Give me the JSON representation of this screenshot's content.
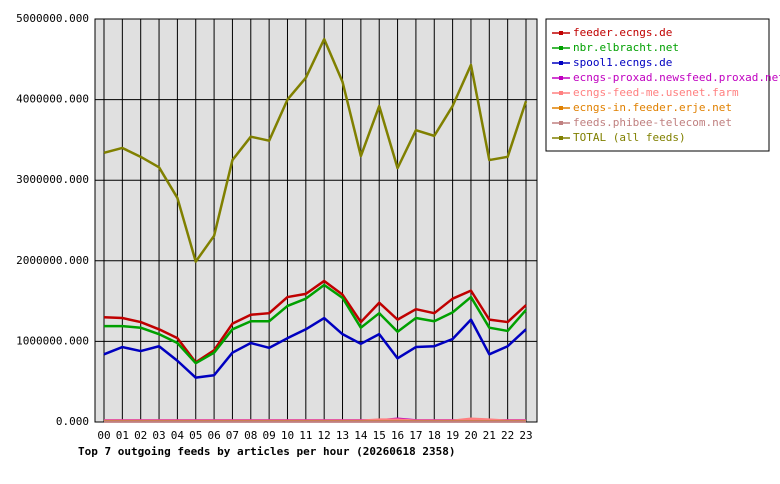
{
  "chart_data": {
    "type": "line",
    "title": "Top 7 outgoing feeds by articles per hour (20260618 2358)",
    "categories": [
      "00",
      "01",
      "02",
      "03",
      "04",
      "05",
      "06",
      "07",
      "08",
      "09",
      "10",
      "11",
      "12",
      "13",
      "14",
      "15",
      "16",
      "17",
      "18",
      "19",
      "20",
      "21",
      "22",
      "23"
    ],
    "ylim": [
      0,
      5000000
    ],
    "yticks": [
      {
        "value": 0,
        "label": "0.000"
      },
      {
        "value": 1000000,
        "label": "1000000.000"
      },
      {
        "value": 2000000,
        "label": "2000000.000"
      },
      {
        "value": 3000000,
        "label": "3000000.000"
      },
      {
        "value": 4000000,
        "label": "4000000.000"
      },
      {
        "value": 5000000,
        "label": "5000000.000"
      }
    ],
    "grid": true,
    "legend": "right",
    "series": [
      {
        "name": "feeder.ecngs.de",
        "color": "#c00000",
        "values": [
          1300000,
          1290000,
          1240000,
          1150000,
          1040000,
          740000,
          890000,
          1220000,
          1330000,
          1350000,
          1550000,
          1590000,
          1750000,
          1580000,
          1240000,
          1480000,
          1270000,
          1400000,
          1350000,
          1530000,
          1630000,
          1270000,
          1240000,
          1450000
        ]
      },
      {
        "name": "nbr.elbracht.net",
        "color": "#00a000",
        "values": [
          1190000,
          1190000,
          1170000,
          1090000,
          980000,
          730000,
          860000,
          1150000,
          1250000,
          1250000,
          1440000,
          1530000,
          1700000,
          1540000,
          1170000,
          1350000,
          1120000,
          1290000,
          1250000,
          1360000,
          1550000,
          1170000,
          1130000,
          1390000
        ]
      },
      {
        "name": "spool1.ecngs.de",
        "color": "#0000c0",
        "values": [
          840000,
          930000,
          880000,
          940000,
          760000,
          550000,
          580000,
          860000,
          980000,
          920000,
          1040000,
          1150000,
          1290000,
          1090000,
          970000,
          1090000,
          790000,
          930000,
          940000,
          1030000,
          1270000,
          840000,
          940000,
          1150000
        ]
      },
      {
        "name": "ecngs-proxad.newsfeed.proxad.net",
        "color": "#c000c0",
        "values": [
          20000,
          20000,
          20000,
          20000,
          20000,
          20000,
          20000,
          20000,
          20000,
          20000,
          20000,
          20000,
          20000,
          20000,
          20000,
          20000,
          40000,
          20000,
          20000,
          20000,
          20000,
          20000,
          20000,
          20000
        ]
      },
      {
        "name": "ecngs-feed-me.usenet.farm",
        "color": "#ff8080",
        "values": [
          15000,
          15000,
          15000,
          15000,
          15000,
          15000,
          15000,
          15000,
          15000,
          15000,
          15000,
          15000,
          15000,
          15000,
          15000,
          30000,
          30000,
          15000,
          15000,
          15000,
          40000,
          30000,
          15000,
          15000
        ]
      },
      {
        "name": "ecngs-in.feeder.erje.net",
        "color": "#e08000",
        "values": [
          10000,
          10000,
          10000,
          10000,
          10000,
          10000,
          10000,
          10000,
          10000,
          10000,
          10000,
          10000,
          10000,
          10000,
          10000,
          10000,
          10000,
          10000,
          10000,
          10000,
          10000,
          10000,
          10000,
          10000
        ]
      },
      {
        "name": "feeds.phibee-telecom.net",
        "color": "#c08080",
        "values": [
          5000,
          5000,
          5000,
          5000,
          5000,
          5000,
          5000,
          5000,
          5000,
          5000,
          5000,
          5000,
          5000,
          5000,
          5000,
          5000,
          5000,
          5000,
          5000,
          5000,
          5000,
          5000,
          5000,
          5000
        ]
      },
      {
        "name": "TOTAL (all feeds)",
        "color": "#808000",
        "values": [
          3340000,
          3400000,
          3290000,
          3160000,
          2780000,
          1990000,
          2310000,
          3250000,
          3540000,
          3490000,
          4000000,
          4270000,
          4750000,
          4220000,
          3300000,
          3920000,
          3150000,
          3620000,
          3550000,
          3920000,
          4430000,
          3250000,
          3290000,
          3980000
        ]
      }
    ]
  }
}
